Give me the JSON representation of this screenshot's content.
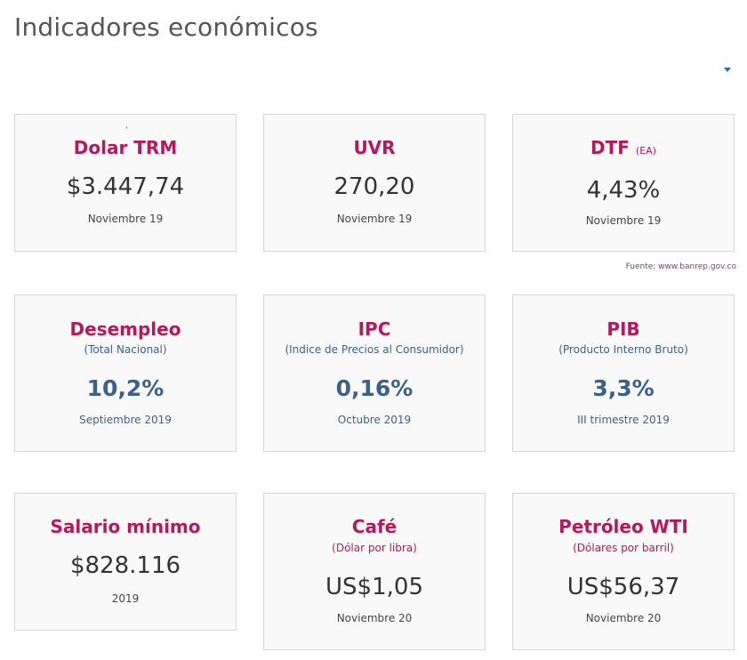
{
  "header": {
    "title": "Indicadores económicos"
  },
  "source": {
    "label": "Fuente:",
    "link": "www.banrep.gov.co"
  },
  "cards": {
    "trm": {
      "name": "Dolar TRM",
      "value": "$3.447,74",
      "date": "Noviembre 19"
    },
    "uvr": {
      "name": "UVR",
      "value": "270,20",
      "date": "Noviembre 19"
    },
    "dtf": {
      "name": "DTF",
      "unit": "(EA)",
      "value": "4,43%",
      "date": "Noviembre 19"
    },
    "desempleo": {
      "name": "Desempleo",
      "subtitle": "(Total Nacional)",
      "value": "10,2%",
      "date": "Septiembre 2019"
    },
    "ipc": {
      "name": "IPC",
      "subtitle": "(Indice de Precios al Consumidor)",
      "value": "0,16%",
      "date": "Octubre 2019"
    },
    "pib": {
      "name": "PIB",
      "subtitle": "(Producto Interno Bruto)",
      "value": "3,3%",
      "date": "III trimestre 2019"
    },
    "salario": {
      "name": "Salario mínimo",
      "value": "$828.116",
      "date": "2019"
    },
    "cafe": {
      "name": "Café",
      "subtitle": "(Dólar por libra)",
      "value": "US$1,05",
      "date": "Noviembre 20"
    },
    "petroleo": {
      "name": "Petróleo WTI",
      "subtitle": "(Dólares por barril)",
      "value": "US$56,37",
      "date": "Noviembre 20"
    }
  },
  "colors": {
    "accent": "#b8185a",
    "blue": "#3b5f8e",
    "text": "#333333"
  },
  "icons": {
    "dropdown": "caret-down-icon"
  }
}
